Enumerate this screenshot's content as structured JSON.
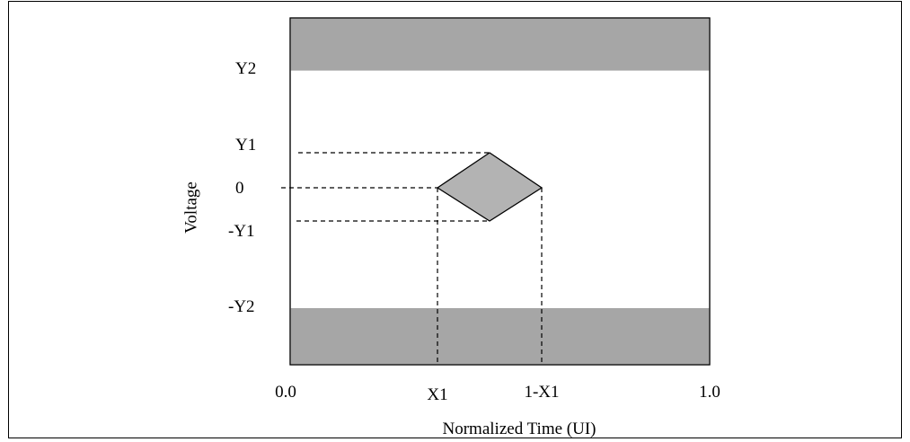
{
  "diagram": {
    "y_axis_title": "Voltage",
    "x_axis_title": "Normalized Time (UI)",
    "y_labels": {
      "y2": "Y2",
      "y1": "Y1",
      "zero": "0",
      "neg_y1": "-Y1",
      "neg_y2": "-Y2"
    },
    "x_labels": {
      "start": "0.0",
      "x1": "X1",
      "one_minus_x1": "1-X1",
      "end": "1.0"
    },
    "colors": {
      "mask_fill": "#a6a6a6",
      "diamond_fill": "#b3b3b3",
      "line": "#000000"
    }
  }
}
